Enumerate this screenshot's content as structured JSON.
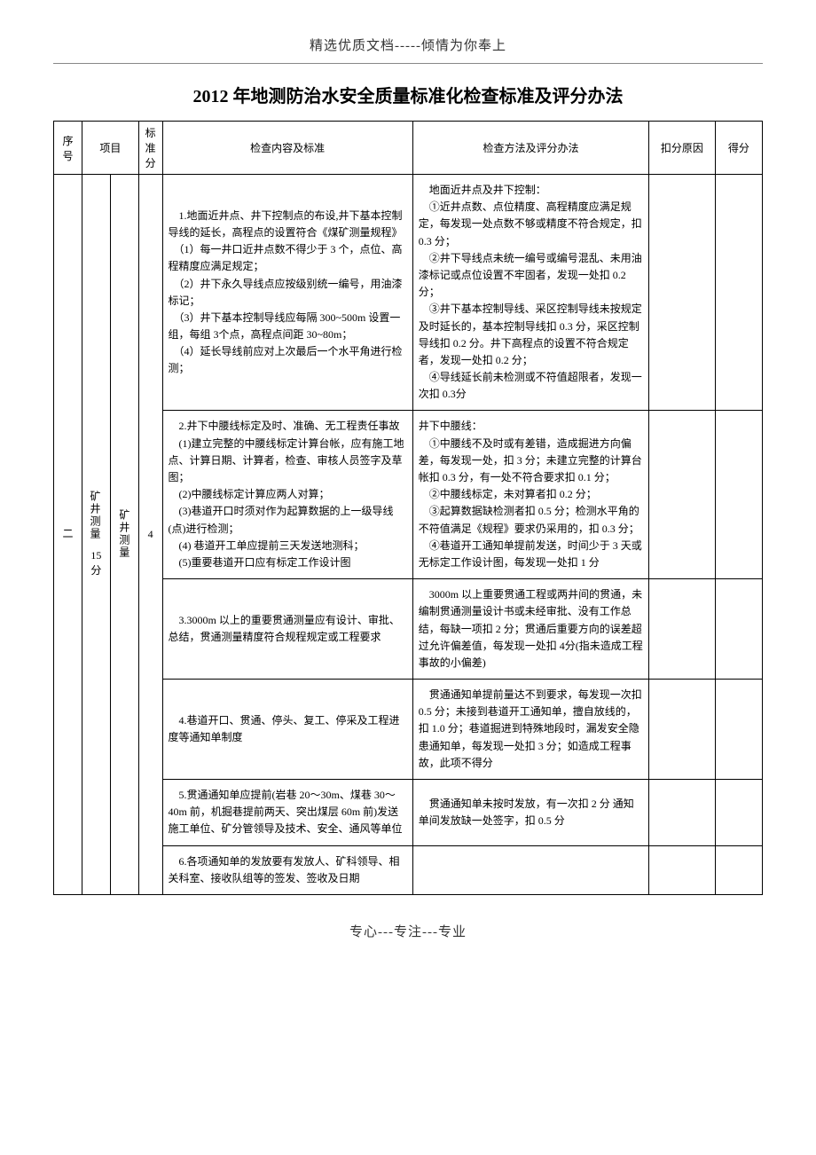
{
  "header": "精选优质文档-----倾情为你奉上",
  "title": "2012 年地测防治水安全质量标准化检查标准及评分办法",
  "footer": "专心---专注---专业",
  "columns": {
    "seq": "序号",
    "project": "项目",
    "standard_score": "标准分",
    "check_content": "检查内容及标准",
    "check_method": "检查方法及评分办法",
    "deduct_reason": "扣分原因",
    "score": "得分"
  },
  "section": {
    "seq_num": "二",
    "project_main": "矿井测量",
    "project_score_label": "15分",
    "project_sub": "矿井测量",
    "standard_score": "4"
  },
  "rows": [
    {
      "content": "　1.地面近井点、井下控制点的布设,井下基本控制导线的延长，高程点的设置符合《煤矿测量规程》\n　（1）每一井口近井点数不得少于 3 个，点位、高程精度应满足规定；\n　（2）井下永久导线点应按级别统一编号，用油漆标记；\n　（3）井下基本控制导线应每隔 300~500m 设置一组，每组 3个点，高程点间距 30~80m；\n　（4）延长导线前应对上次最后一个水平角进行检测；",
      "method": "　地面近井点及井下控制：\n　①近井点数、点位精度、高程精度应满足规定，每发现一处点数不够或精度不符合规定，扣 0.3 分；\n　②井下导线点未统一编号或编号混乱、未用油漆标记或点位设置不牢固者，发现一处扣 0.2 分；\n　③井下基本控制导线、采区控制导线未按规定及时延长的，基本控制导线扣 0.3 分，采区控制导线扣 0.2 分。井下高程点的设置不符合规定者，发现一处扣 0.2 分；\n　④导线延长前未检测或不符值超限者，发现一次扣 0.3分"
    },
    {
      "content": "　2.井下中腰线标定及时、准确、无工程责任事故\n　(1)建立完整的中腰线标定计算台帐，应有施工地点、计算日期、计算者，检查、审核人员签字及草图；\n　(2)中腰线标定计算应两人对算；\n　(3)巷道开口时须对作为起算数据的上一级导线(点)进行检测；\n　(4) 巷道开工单应提前三天发送地测科；\n　(5)重要巷道开口应有标定工作设计图",
      "method": "井下中腰线：\n　①中腰线不及时或有差错，造成掘进方向偏差，每发现一处，扣 3 分；未建立完整的计算台帐扣 0.3 分，有一处不符合要求扣 0.1 分；\n　②中腰线标定，未对算者扣 0.2 分；\n　③起算数据缺检测者扣 0.5 分；检测水平角的不符值满足《规程》要求仍采用的，扣 0.3 分；\n　④巷道开工通知单提前发送，时间少于 3 天或无标定工作设计图，每发现一处扣 1 分"
    },
    {
      "content": "　3.3000m 以上的重要贯通测量应有设计、审批、总结，贯通测量精度符合规程规定或工程要求",
      "method": "　3000m 以上重要贯通工程或两井间的贯通，未编制贯通测量设计书或未经审批、没有工作总结，每缺一项扣 2 分；贯通后重要方向的误差超过允许偏差值，每发现一处扣 4分(指未造成工程事故的小偏差)"
    },
    {
      "content": "　4.巷道开口、贯通、停头、复工、停采及工程进度等通知单制度",
      "method": "　贯通通知单提前量达不到要求，每发现一次扣 0.5 分；未接到巷道开工通知单，擅自放线的，扣 1.0 分；巷道掘进到特殊地段时，漏发安全隐患通知单，每发现一处扣 3 分；如造成工程事故，此项不得分"
    },
    {
      "content": "　5.贯通通知单应提前(岩巷 20～30m、煤巷 30～40m 前，机掘巷提前两天、突出煤层 60m 前)发送施工单位、矿分管领导及技术、安全、通风等单位",
      "method": "　贯通通知单未按时发放，有一次扣 2 分  通知单间发放缺一处签字，扣 0.5 分"
    },
    {
      "content": "　6.各项通知单的发放要有发放人、矿科领导、相关科室、接收队组等的签发、签收及日期",
      "method": ""
    }
  ],
  "colors": {
    "background": "#ffffff",
    "text": "#000000",
    "header_text": "#333333",
    "border": "#000000",
    "header_line": "#888888"
  },
  "fonts": {
    "body_family": "SimSun",
    "header_size": 15,
    "title_size": 20,
    "table_size": 12
  }
}
